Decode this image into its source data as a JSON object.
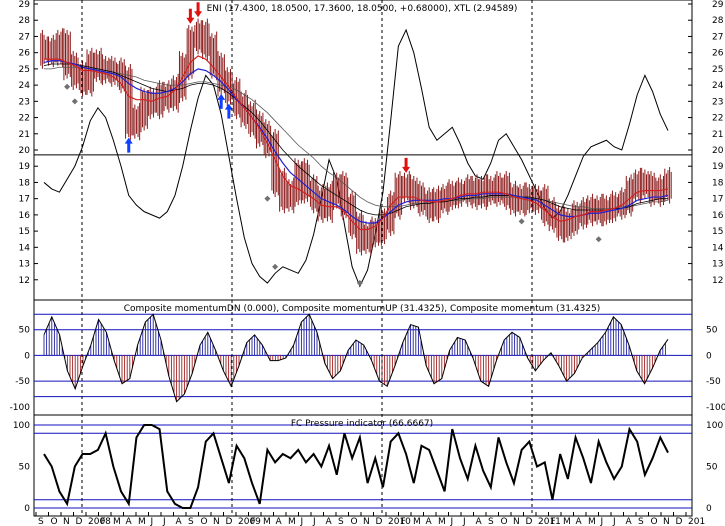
{
  "chart_data": [
    {
      "type": "line",
      "panel": "price",
      "title": "ENI (17.4300, 18.0500, 17.3600, 18.0500, +0.68000), XTL (2.94589)",
      "ylim": [
        11,
        29
      ],
      "yticks": [
        12,
        13,
        14,
        15,
        16,
        17,
        18,
        19,
        20,
        21,
        22,
        23,
        24,
        25,
        26,
        27,
        28,
        29
      ],
      "reference_line": 19.7,
      "grid": false,
      "ohlc_close": [
        26.2,
        26.0,
        26.6,
        25.2,
        24.6,
        24.2,
        25.4,
        25.0,
        24.9,
        24.8,
        24.4,
        21.5,
        22.0,
        23.0,
        22.8,
        23.4,
        23.2,
        23.8,
        25.2,
        26.8,
        27.2,
        26.4,
        25.2,
        24.2,
        23.6,
        22.8,
        22.2,
        21.6,
        21.0,
        20.4,
        18.0,
        17.0,
        17.4,
        18.6,
        17.6,
        17.0,
        16.4,
        17.2,
        17.8,
        16.6,
        15.4,
        14.4,
        14.8,
        15.0,
        15.6,
        16.6,
        17.8,
        17.6,
        17.2,
        16.8,
        16.4,
        16.9,
        17.1,
        17.3,
        17.4,
        17.6,
        17.2,
        17.6,
        17.4,
        17.8,
        17.2,
        16.8,
        17.1,
        16.9,
        17.0,
        16.2,
        15.8,
        15.2,
        15.6,
        16.0,
        16.2,
        16.4,
        16.2,
        16.4,
        16.6,
        16.8,
        17.6,
        18.0,
        17.8,
        17.4,
        17.6,
        18.05
      ],
      "ma_short": [
        25.6,
        25.6,
        25.6,
        25.4,
        25.2,
        24.9,
        24.9,
        24.8,
        24.7,
        24.5,
        24.1,
        23.3,
        23.1,
        23.1,
        23.0,
        23.2,
        23.3,
        23.7,
        24.5,
        25.4,
        25.8,
        25.6,
        25.1,
        24.5,
        23.9,
        23.2,
        22.6,
        22.0,
        21.3,
        20.4,
        19.4,
        18.4,
        17.8,
        17.6,
        17.3,
        17.0,
        16.6,
        16.5,
        16.5,
        16.2,
        15.6,
        15.1,
        15.1,
        15.3,
        15.8,
        16.6,
        17.1,
        17.1,
        17.1,
        16.9,
        16.8,
        16.8,
        16.9,
        17.0,
        17.2,
        17.3,
        17.3,
        17.4,
        17.4,
        17.4,
        17.3,
        17.1,
        17.0,
        16.9,
        16.7,
        16.3,
        15.9,
        15.6,
        15.7,
        15.9,
        16.0,
        16.2,
        16.2,
        16.3,
        16.4,
        16.6,
        17.0,
        17.4,
        17.5,
        17.5,
        17.5,
        17.6
      ],
      "ma_mid": [
        25.4,
        25.5,
        25.5,
        25.4,
        25.3,
        25.1,
        25.0,
        24.9,
        24.8,
        24.7,
        24.5,
        24.1,
        23.8,
        23.6,
        23.5,
        23.5,
        23.6,
        23.8,
        24.2,
        24.7,
        25.0,
        24.9,
        24.6,
        24.2,
        23.7,
        23.1,
        22.6,
        22.0,
        21.4,
        20.7,
        19.9,
        19.2,
        18.6,
        18.2,
        17.8,
        17.4,
        17.0,
        16.8,
        16.6,
        16.3,
        15.9,
        15.6,
        15.5,
        15.5,
        15.8,
        16.2,
        16.6,
        16.8,
        16.9,
        16.9,
        16.9,
        16.9,
        17.0,
        17.0,
        17.1,
        17.2,
        17.2,
        17.3,
        17.3,
        17.3,
        17.3,
        17.2,
        17.1,
        17.0,
        16.9,
        16.6,
        16.3,
        16.0,
        15.9,
        15.9,
        16.0,
        16.1,
        16.1,
        16.2,
        16.3,
        16.4,
        16.6,
        16.9,
        17.0,
        17.1,
        17.1,
        17.2
      ],
      "ma_long": [
        25.2,
        25.3,
        25.3,
        25.3,
        25.3,
        25.2,
        25.1,
        25.0,
        24.9,
        24.8,
        24.6,
        24.4,
        24.2,
        24.0,
        23.8,
        23.7,
        23.6,
        23.7,
        23.8,
        24.0,
        24.1,
        24.1,
        24.0,
        23.8,
        23.5,
        23.1,
        22.7,
        22.3,
        21.8,
        21.2,
        20.6,
        20.0,
        19.5,
        19.0,
        18.6,
        18.2,
        17.8,
        17.5,
        17.2,
        16.9,
        16.6,
        16.3,
        16.1,
        16.0,
        16.0,
        16.1,
        16.3,
        16.5,
        16.6,
        16.7,
        16.7,
        16.8,
        16.8,
        16.9,
        17.0,
        17.0,
        17.1,
        17.1,
        17.2,
        17.2,
        17.2,
        17.2,
        17.1,
        17.1,
        17.0,
        16.9,
        16.7,
        16.5,
        16.4,
        16.3,
        16.3,
        16.3,
        16.3,
        16.3,
        16.4,
        16.4,
        16.5,
        16.7,
        16.8,
        16.9,
        17.0,
        17.0
      ],
      "ma_xlong": [
        25.0,
        25.0,
        25.1,
        25.1,
        25.1,
        25.1,
        25.0,
        25.0,
        24.9,
        24.8,
        24.7,
        24.6,
        24.5,
        24.3,
        24.2,
        24.1,
        24.0,
        24.0,
        24.0,
        24.1,
        24.2,
        24.2,
        24.1,
        24.0,
        23.9,
        23.7,
        23.4,
        23.1,
        22.7,
        22.3,
        21.8,
        21.3,
        20.8,
        20.3,
        19.9,
        19.5,
        19.0,
        18.6,
        18.3,
        17.9,
        17.5,
        17.1,
        16.8,
        16.6,
        16.5,
        16.5,
        16.5,
        16.6,
        16.7,
        16.7,
        16.8,
        16.8,
        16.8,
        16.9,
        16.9,
        17.0,
        17.0,
        17.0,
        17.1,
        17.1,
        17.1,
        17.1,
        17.1,
        17.0,
        17.0,
        16.9,
        16.8,
        16.7,
        16.6,
        16.5,
        16.5,
        16.4,
        16.4,
        16.4,
        16.4,
        16.5,
        16.5,
        16.6,
        16.7,
        16.8,
        16.8,
        16.9
      ],
      "oscillator_line": [
        18.0,
        17.6,
        17.4,
        18.2,
        19.0,
        20.2,
        21.8,
        22.6,
        22.0,
        20.6,
        19.0,
        17.2,
        16.6,
        16.2,
        16.0,
        15.8,
        16.2,
        17.2,
        19.0,
        21.2,
        23.2,
        24.6,
        24.0,
        22.2,
        19.6,
        17.0,
        14.6,
        13.0,
        12.2,
        11.8,
        12.4,
        12.8,
        12.6,
        12.4,
        13.2,
        14.8,
        17.0,
        19.4,
        18.2,
        15.4,
        12.8,
        11.6,
        12.6,
        14.8,
        17.4,
        21.8,
        26.4,
        27.4,
        26.0,
        23.8,
        21.4,
        20.6,
        21.0,
        21.4,
        20.4,
        19.2,
        18.4,
        18.2,
        19.2,
        20.6,
        21.0,
        20.2,
        19.4,
        18.4,
        17.4,
        16.4,
        15.8,
        16.2,
        17.2,
        18.4,
        19.6,
        20.2,
        20.4,
        20.6,
        20.2,
        20.0,
        21.6,
        23.4,
        24.6,
        23.6,
        22.2,
        21.2
      ],
      "arrows_down_red": [
        19,
        20,
        47
      ],
      "arrows_up_blue": [
        11,
        23,
        24
      ],
      "diamonds": [
        [
          3,
          23.9
        ],
        [
          4,
          23.0
        ],
        [
          24,
          22.6
        ],
        [
          29,
          17.0
        ],
        [
          30,
          12.8
        ],
        [
          41,
          11.8
        ],
        [
          62,
          15.6
        ],
        [
          72,
          14.5
        ]
      ]
    },
    {
      "type": "area",
      "panel": "composite_momentum",
      "title": "Composite momentumDN (0.000), Composite momentumUP (31.4325), Composite momentum (31.4325)",
      "ylim": [
        -110,
        100
      ],
      "yticks": [
        -100,
        -50,
        0,
        50
      ],
      "guide_lines": [
        80,
        50,
        -50,
        -80
      ],
      "values": [
        40,
        75,
        40,
        -30,
        -65,
        -20,
        20,
        70,
        45,
        -10,
        -55,
        -45,
        20,
        65,
        80,
        30,
        -40,
        -90,
        -75,
        -35,
        20,
        45,
        10,
        -30,
        -60,
        -20,
        25,
        40,
        20,
        -10,
        -10,
        -5,
        20,
        65,
        80,
        45,
        -15,
        -45,
        -30,
        10,
        30,
        20,
        -10,
        -50,
        -60,
        -20,
        25,
        60,
        55,
        -20,
        -55,
        -45,
        10,
        35,
        30,
        -5,
        -50,
        -60,
        -10,
        30,
        45,
        35,
        -5,
        -30,
        -10,
        5,
        -20,
        -50,
        -35,
        -5,
        10,
        25,
        45,
        75,
        60,
        20,
        -30,
        -55,
        -25,
        10,
        31.4
      ]
    },
    {
      "type": "line",
      "panel": "fc_pressure",
      "title": "FC Pressure indicator (66.6667)",
      "ylim": [
        0,
        100
      ],
      "yticks": [
        0,
        50,
        100
      ],
      "guide_lines": [
        100,
        90,
        10,
        0
      ],
      "values": [
        65,
        50,
        20,
        5,
        50,
        65,
        65,
        70,
        90,
        50,
        20,
        5,
        85,
        100,
        100,
        95,
        20,
        5,
        0,
        0,
        25,
        80,
        90,
        60,
        30,
        75,
        60,
        30,
        5,
        70,
        55,
        65,
        60,
        70,
        55,
        65,
        50,
        75,
        40,
        90,
        60,
        85,
        30,
        60,
        25,
        80,
        90,
        65,
        30,
        75,
        70,
        45,
        20,
        95,
        60,
        35,
        75,
        45,
        25,
        85,
        55,
        30,
        70,
        80,
        50,
        55,
        10,
        65,
        35,
        85,
        60,
        30,
        80,
        55,
        35,
        50,
        95,
        80,
        40,
        60,
        85,
        66.7
      ]
    },
    {
      "type": "axis",
      "panel": "date_axis",
      "labels": [
        "S",
        "O",
        "N",
        "D",
        "2008",
        "F",
        "M",
        "A",
        "M",
        "J",
        "J",
        "A",
        "S",
        "O",
        "N",
        "D",
        "2009",
        "F",
        "M",
        "A",
        "M",
        "J",
        "J",
        "A",
        "S",
        "O",
        "N",
        "D",
        "2010",
        "F",
        "M",
        "A",
        "M",
        "J",
        "J",
        "A",
        "S",
        "O",
        "N",
        "D",
        "2011",
        "F",
        "M",
        "A",
        "M",
        "J",
        "J",
        "A",
        "S",
        "O",
        "N",
        "D",
        "201"
      ]
    }
  ],
  "colors": {
    "bar": "#8b1a1a",
    "ma_short": "#d42020",
    "ma_mid": "#2020d0",
    "ma_long": "#000000",
    "ma_xlong": "#555555",
    "osc": "#000000",
    "arrow_down": "#e01010",
    "arrow_up": "#1040ff",
    "diamond": "#707070",
    "momentum_pos": "#2020a0",
    "momentum_neg": "#a02020",
    "guide": "#1010c0"
  }
}
